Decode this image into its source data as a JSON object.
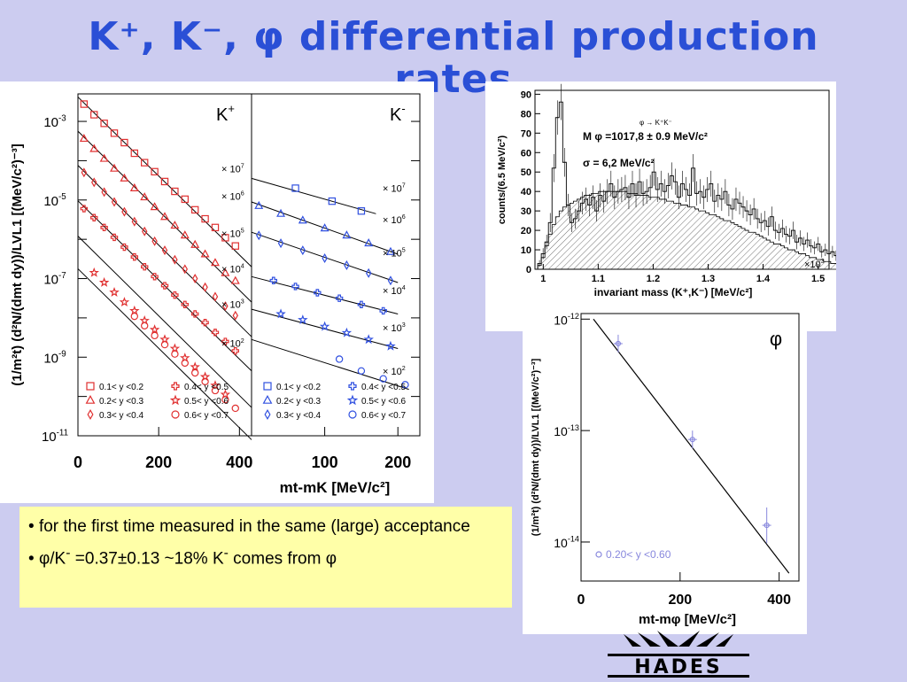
{
  "slide": {
    "title_line1": "K⁺, K⁻, φ differential production",
    "title_line2": "rates"
  },
  "notes": {
    "bullet1": "for the first time measured in the same (large) acceptance",
    "bullet2_pre": "φ/K",
    "bullet2_sup": "-",
    "bullet2_mid": " =0.37±0.13   ~18% K",
    "bullet2_sup2": "-",
    "bullet2_post": " comes from φ",
    "bullet_symbol": "•"
  },
  "logo": {
    "text": "HADES"
  },
  "chart_data": [
    {
      "type": "scatter",
      "panel": "K+",
      "ylabel": "(1/m_t^2) (d^2N/(dm_t dy))/LVL1 [(MeV/c^2)^-3]",
      "xlabel": "m_t-m_K [MeV/c^2]",
      "xlim": [
        0,
        430
      ],
      "ylim_log10": [
        -11,
        -2.3
      ],
      "x_ticks": [
        "0",
        "200",
        "400"
      ],
      "y_ticks": [
        "10^-3",
        "10^-5",
        "10^-7",
        "10^-9",
        "10^-11"
      ],
      "panel_label": "K",
      "panel_label_sup": "+",
      "scale_labels": [
        "× 10^7",
        "× 10^6",
        "× 10^5",
        "× 10^4",
        "× 10^3",
        "× 10^2"
      ],
      "series": [
        {
          "name": "0.1< y <0.2",
          "marker": "square",
          "color": "#e03030",
          "slope": -0.0108,
          "x": [
            15,
            40,
            65,
            90,
            115,
            140,
            165,
            190,
            215,
            240,
            265,
            290,
            315,
            340,
            365,
            390
          ],
          "log10y": [
            -2.56,
            -2.83,
            -3.05,
            -3.3,
            -3.54,
            -3.81,
            -4.05,
            -4.28,
            -4.53,
            -4.78,
            -4.98,
            -5.25,
            -5.48,
            -5.7,
            -5.96,
            -6.17
          ]
        },
        {
          "name": "0.2< y <0.3",
          "marker": "triangle",
          "color": "#e03030",
          "x": [
            15,
            40,
            65,
            90,
            115,
            140,
            165,
            190,
            215,
            240,
            265,
            290,
            315,
            340,
            365,
            390
          ],
          "log10y": [
            -3.44,
            -3.7,
            -3.95,
            -4.2,
            -4.45,
            -4.7,
            -4.93,
            -5.18,
            -5.43,
            -5.65,
            -5.9,
            -6.14,
            -6.38,
            -6.6,
            -6.86,
            -7.06
          ]
        },
        {
          "name": "0.3< y <0.4",
          "marker": "diamond",
          "color": "#e03030",
          "x": [
            15,
            40,
            65,
            90,
            115,
            140,
            165,
            190,
            215,
            240,
            265,
            290,
            315,
            340,
            365,
            390
          ],
          "log10y": [
            -4.3,
            -4.55,
            -4.8,
            -5.05,
            -5.3,
            -5.55,
            -5.8,
            -6.05,
            -6.28,
            -6.52,
            -6.76,
            -7.0,
            -7.22,
            -7.46,
            -7.7,
            -7.94
          ]
        },
        {
          "name": "0.4< y <0.5",
          "marker": "cross",
          "color": "#e03030",
          "x": [
            15,
            40,
            65,
            90,
            115,
            140,
            165,
            190,
            215,
            240,
            265,
            290,
            315,
            340,
            365,
            390
          ],
          "log10y": [
            -5.22,
            -5.45,
            -5.7,
            -5.95,
            -6.2,
            -6.45,
            -6.7,
            -6.95,
            -7.18,
            -7.42,
            -7.66,
            -7.9,
            -8.12,
            -8.37,
            -8.6,
            -8.84
          ]
        },
        {
          "name": "0.5< y <0.6",
          "marker": "star",
          "color": "#e03030",
          "x": [
            40,
            65,
            90,
            115,
            140,
            165,
            190,
            215,
            240,
            265,
            290,
            315,
            340,
            365
          ],
          "log10y": [
            -6.85,
            -7.1,
            -7.35,
            -7.6,
            -7.82,
            -8.07,
            -8.3,
            -8.55,
            -8.78,
            -9.02,
            -9.25,
            -9.5,
            -9.72,
            -9.95
          ]
        },
        {
          "name": "0.6< y <0.7",
          "marker": "circle",
          "color": "#e03030",
          "x": [
            140,
            165,
            190,
            215,
            240,
            265,
            290,
            315,
            340,
            365,
            390
          ],
          "log10y": [
            -7.96,
            -8.2,
            -8.45,
            -8.68,
            -8.92,
            -9.15,
            -9.4,
            -9.62,
            -9.85,
            -10.08,
            -10.3
          ]
        }
      ],
      "fit_lines": [
        {
          "x": [
            0,
            430
          ],
          "log10y": [
            -2.38,
            -6.7
          ]
        },
        {
          "x": [
            0,
            430
          ],
          "log10y": [
            -3.25,
            -7.6
          ]
        },
        {
          "x": [
            0,
            430
          ],
          "log10y": [
            -4.12,
            -8.48
          ]
        },
        {
          "x": [
            0,
            430
          ],
          "log10y": [
            -5.02,
            -9.35
          ]
        },
        {
          "x": [
            0,
            430
          ],
          "log10y": [
            -5.92,
            -10.28
          ]
        },
        {
          "x": [
            0,
            430
          ],
          "log10y": [
            -6.75,
            -11.1
          ]
        }
      ]
    },
    {
      "type": "scatter",
      "panel": "K-",
      "xlabel": "m_t-m_K [MeV/c^2]",
      "xlim": [
        0,
        230
      ],
      "ylim_log10": [
        -11,
        -2.3
      ],
      "x_ticks": [
        "100",
        "200"
      ],
      "panel_label": "K",
      "panel_label_sup": "-",
      "scale_labels": [
        "× 10^7",
        "× 10^6",
        "× 10^5",
        "× 10^4",
        "× 10^3",
        "× 10^2"
      ],
      "series": [
        {
          "name": "0.1< y <0.2",
          "marker": "square",
          "color": "#3050e0",
          "x": [
            60,
            110,
            150
          ],
          "log10y": [
            -4.7,
            -5.03,
            -5.28
          ]
        },
        {
          "name": "0.2< y <0.3",
          "marker": "triangle",
          "color": "#3050e0",
          "x": [
            10,
            40,
            70,
            100,
            130,
            160,
            190
          ],
          "log10y": [
            -5.15,
            -5.35,
            -5.52,
            -5.72,
            -5.9,
            -6.1,
            -6.32
          ]
        },
        {
          "name": "0.3< y <0.4",
          "marker": "diamond",
          "color": "#3050e0",
          "x": [
            10,
            40,
            70,
            100,
            130,
            160,
            190
          ],
          "log10y": [
            -5.9,
            -6.1,
            -6.28,
            -6.48,
            -6.66,
            -6.86,
            -7.05
          ]
        },
        {
          "name": "0.4< y <0.5",
          "marker": "cross",
          "color": "#3050e0",
          "x": [
            30,
            60,
            90,
            120,
            150,
            180
          ],
          "log10y": [
            -7.05,
            -7.2,
            -7.36,
            -7.5,
            -7.66,
            -7.82
          ]
        },
        {
          "name": "0.5< y <0.6",
          "marker": "star",
          "color": "#3050e0",
          "x": [
            40,
            70,
            100,
            130,
            160,
            190
          ],
          "log10y": [
            -7.9,
            -8.05,
            -8.22,
            -8.38,
            -8.55,
            -8.72
          ]
        },
        {
          "name": "0.6< y <0.7",
          "marker": "circle",
          "color": "#3050e0",
          "x": [
            120,
            150,
            180,
            210
          ],
          "log10y": [
            -9.05,
            -9.35,
            -9.55,
            -9.7
          ]
        }
      ],
      "fit_lines": [
        {
          "x": [
            0,
            170
          ],
          "log10y": [
            -4.45,
            -5.35
          ]
        },
        {
          "x": [
            0,
            200
          ],
          "log10y": [
            -5.05,
            -6.38
          ]
        },
        {
          "x": [
            0,
            200
          ],
          "log10y": [
            -5.82,
            -7.1
          ]
        },
        {
          "x": [
            0,
            200
          ],
          "log10y": [
            -6.95,
            -7.9
          ]
        },
        {
          "x": [
            0,
            200
          ],
          "log10y": [
            -7.78,
            -8.78
          ]
        },
        {
          "x": [
            0,
            215
          ],
          "log10y": [
            -8.55,
            -9.82
          ]
        }
      ],
      "legend": {
        "entries": [
          "0.1< y <0.2",
          "0.4< y <0.5",
          "0.2< y <0.3",
          "0.5< y <0.6",
          "0.3< y <0.4",
          "0.6< y <0.7"
        ]
      }
    },
    {
      "type": "bar",
      "panel": "invariant mass",
      "xlabel": "invariant mass (K+,K-) [MeV/c^2]",
      "ylabel": "counts/(6.5 MeV/c^2)",
      "xlim": [
        0.985,
        1.52
      ],
      "ylim": [
        0,
        92
      ],
      "x_ticks": [
        "1",
        "1.1",
        "1.2",
        "1.3",
        "1.4",
        "1.5"
      ],
      "y_ticks": [
        "0",
        "10",
        "20",
        "30",
        "40",
        "50",
        "60",
        "70",
        "80",
        "90"
      ],
      "x_multiplier": "×10^3",
      "annotations": {
        "decay": "φ → K⁺K⁻",
        "mass": "M φ =1017,8 ± 0.9 MeV/c²",
        "width": "σ = 6,2 MeV/c²"
      },
      "bin_width": 0.0065,
      "x_start": 0.99,
      "counts": [
        3,
        8,
        14,
        24,
        52,
        78,
        86,
        55,
        33,
        24,
        26,
        30,
        34,
        36,
        33,
        37,
        30,
        38,
        35,
        40,
        44,
        37,
        40,
        41,
        42,
        37,
        44,
        38,
        45,
        39,
        40,
        42,
        50,
        41,
        44,
        40,
        43,
        48,
        45,
        37,
        44,
        41,
        38,
        52,
        39,
        40,
        37,
        41,
        44,
        35,
        38,
        36,
        40,
        33,
        31,
        36,
        34,
        32,
        30,
        28,
        31,
        26,
        24,
        25,
        22,
        27,
        20,
        19,
        21,
        18,
        17,
        20,
        14,
        16,
        13,
        15,
        12,
        11,
        13,
        9,
        10,
        8,
        9,
        7,
        6,
        7,
        5,
        4,
        4,
        3
      ],
      "background": [
        2,
        6,
        12,
        18,
        23,
        27,
        30,
        32,
        33,
        34,
        35,
        36,
        37,
        38,
        38,
        39,
        39,
        40,
        40,
        40,
        40,
        40,
        40,
        40,
        40,
        39,
        39,
        39,
        38,
        38,
        38,
        37,
        37,
        37,
        36,
        36,
        35,
        35,
        34,
        34,
        33,
        33,
        32,
        32,
        31,
        30,
        30,
        29,
        28,
        28,
        27,
        26,
        25,
        25,
        24,
        23,
        22,
        21,
        20,
        19,
        19,
        18,
        17,
        16,
        15,
        14,
        13,
        13,
        12,
        11,
        10,
        10,
        9,
        8,
        8,
        7,
        6,
        6,
        5,
        5,
        4,
        4,
        3,
        3,
        3,
        2,
        2,
        2,
        1,
        1
      ]
    },
    {
      "type": "scatter",
      "panel": "phi",
      "panel_label": "φ",
      "ylabel": "(1/m_t^2) (d^2N/(dm_t dy))/LVL1 [(MeV/c^2)^-3]",
      "xlabel": "m_t-m_φ [MeV/c^2]",
      "xlim": [
        0,
        440
      ],
      "ylim_log10": [
        -14.35,
        -11.95
      ],
      "x_ticks": [
        "0",
        "200",
        "400"
      ],
      "y_ticks": [
        "10^-12",
        "10^-13",
        "10^-14"
      ],
      "legend": "0.20< y <0.60",
      "series": [
        {
          "name": "0.20< y <0.60",
          "marker": "circle",
          "color": "#8888dd",
          "x": [
            75,
            225,
            375
          ],
          "log10y": [
            -12.22,
            -13.08,
            -13.85
          ],
          "err_log10": [
            0.08,
            0.08,
            0.16
          ]
        }
      ],
      "fit_lines": [
        {
          "x": [
            25,
            420
          ],
          "log10y": [
            -12.0,
            -14.28
          ]
        }
      ]
    }
  ]
}
